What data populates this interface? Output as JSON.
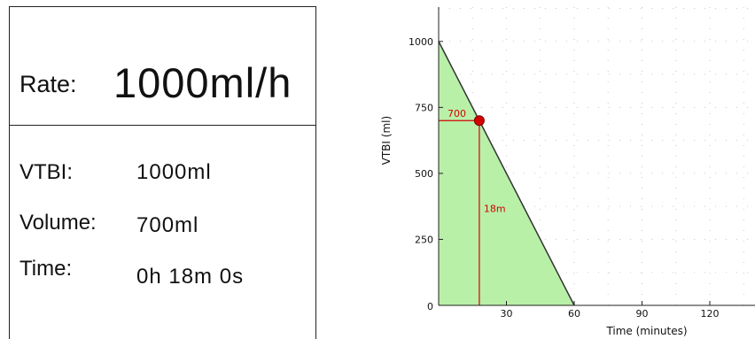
{
  "rate": {
    "label": "Rate:",
    "value": "1000ml/h"
  },
  "rows": [
    {
      "label": "VTBI:",
      "value": "1000ml"
    },
    {
      "label": "Volume:",
      "value": "700ml"
    },
    {
      "label": "Time:",
      "value": "0h 18m 0s"
    }
  ],
  "chart_data": {
    "type": "area",
    "xlabel": "Time (minutes)",
    "ylabel": "VTBI (ml)",
    "x_ticks": [
      0,
      30,
      60,
      90,
      120
    ],
    "y_ticks": [
      250,
      500,
      750,
      1000
    ],
    "origin_label": "0",
    "x_range": [
      0,
      140
    ],
    "y_range": [
      0,
      1130
    ],
    "series": [
      {
        "points": [
          {
            "x": 0,
            "y": 1000
          },
          {
            "x": 60,
            "y": 0
          }
        ]
      }
    ],
    "marker": {
      "x": 18,
      "y": 700
    },
    "annotations": {
      "volume_label": "700",
      "time_label": "18m"
    },
    "colors": {
      "fill": "#b8f0a8",
      "line": "#333333",
      "marker": "#d40000",
      "annotation": "#d40000",
      "grid": "#c8c8c8"
    },
    "grid": true
  }
}
